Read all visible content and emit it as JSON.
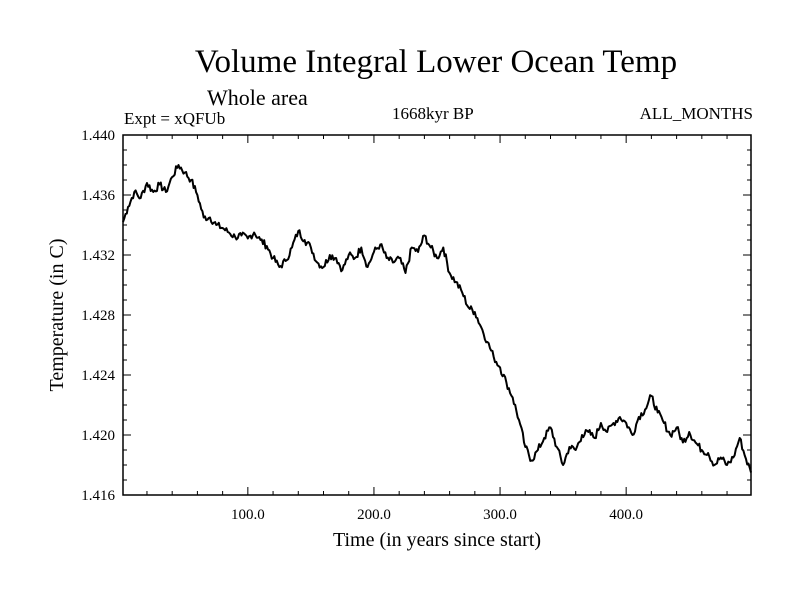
{
  "chart_data": {
    "type": "line",
    "title": "Volume Integral Lower Ocean Temp",
    "subtitle": "Whole area",
    "experiment": "Expt = xQFUb",
    "period": "1668kyr BP",
    "months": "ALL_MONTHS",
    "xlabel": "Time (in years since start)",
    "ylabel": "Temperature (in C)",
    "xlim": [
      1,
      499
    ],
    "ylim": [
      1.416,
      1.44
    ],
    "xticks": [
      100,
      200,
      300,
      400
    ],
    "xtick_labels": [
      "100.0",
      "200.0",
      "300.0",
      "400.0"
    ],
    "yticks": [
      1.416,
      1.42,
      1.424,
      1.428,
      1.432,
      1.436,
      1.44
    ],
    "ytick_labels": [
      "1.416",
      "1.420",
      "1.424",
      "1.428",
      "1.432",
      "1.436",
      "1.440"
    ],
    "grid": false,
    "series": [
      {
        "name": "Temperature",
        "x": [
          1,
          5,
          10,
          15,
          20,
          25,
          30,
          35,
          40,
          45,
          50,
          55,
          60,
          65,
          70,
          75,
          80,
          85,
          90,
          95,
          100,
          105,
          110,
          115,
          120,
          125,
          130,
          135,
          140,
          145,
          150,
          155,
          160,
          165,
          170,
          175,
          180,
          185,
          190,
          195,
          200,
          205,
          210,
          215,
          220,
          225,
          230,
          235,
          240,
          245,
          250,
          255,
          260,
          265,
          270,
          275,
          280,
          285,
          290,
          295,
          300,
          305,
          310,
          315,
          320,
          325,
          330,
          335,
          340,
          345,
          350,
          355,
          360,
          365,
          370,
          375,
          380,
          385,
          390,
          395,
          400,
          405,
          410,
          415,
          420,
          425,
          430,
          435,
          440,
          445,
          450,
          455,
          460,
          465,
          470,
          475,
          480,
          485,
          490,
          495,
          499
        ],
        "y": [
          1.4342,
          1.4352,
          1.4362,
          1.4358,
          1.4368,
          1.4362,
          1.4367,
          1.4362,
          1.4372,
          1.438,
          1.4375,
          1.437,
          1.436,
          1.4345,
          1.4345,
          1.434,
          1.4338,
          1.4335,
          1.4332,
          1.4333,
          1.4331,
          1.4335,
          1.433,
          1.4326,
          1.4318,
          1.4312,
          1.4316,
          1.4325,
          1.4336,
          1.433,
          1.4325,
          1.4315,
          1.4312,
          1.432,
          1.4318,
          1.431,
          1.432,
          1.4318,
          1.4325,
          1.4312,
          1.4322,
          1.4327,
          1.4318,
          1.4315,
          1.4318,
          1.4308,
          1.4325,
          1.4322,
          1.4333,
          1.4325,
          1.4318,
          1.4325,
          1.4308,
          1.4302,
          1.4295,
          1.4285,
          1.4282,
          1.4272,
          1.4262,
          1.4252,
          1.4245,
          1.4235,
          1.4225,
          1.421,
          1.4192,
          1.4183,
          1.419,
          1.4198,
          1.4205,
          1.4192,
          1.418,
          1.4192,
          1.419,
          1.42,
          1.4202,
          1.4198,
          1.4208,
          1.4202,
          1.4208,
          1.4212,
          1.4208,
          1.42,
          1.4212,
          1.4217,
          1.4226,
          1.4215,
          1.4208,
          1.42,
          1.4205,
          1.4195,
          1.4202,
          1.4195,
          1.419,
          1.4188,
          1.418,
          1.4185,
          1.418,
          1.4185,
          1.4198,
          1.4184,
          1.4175
        ]
      }
    ]
  }
}
